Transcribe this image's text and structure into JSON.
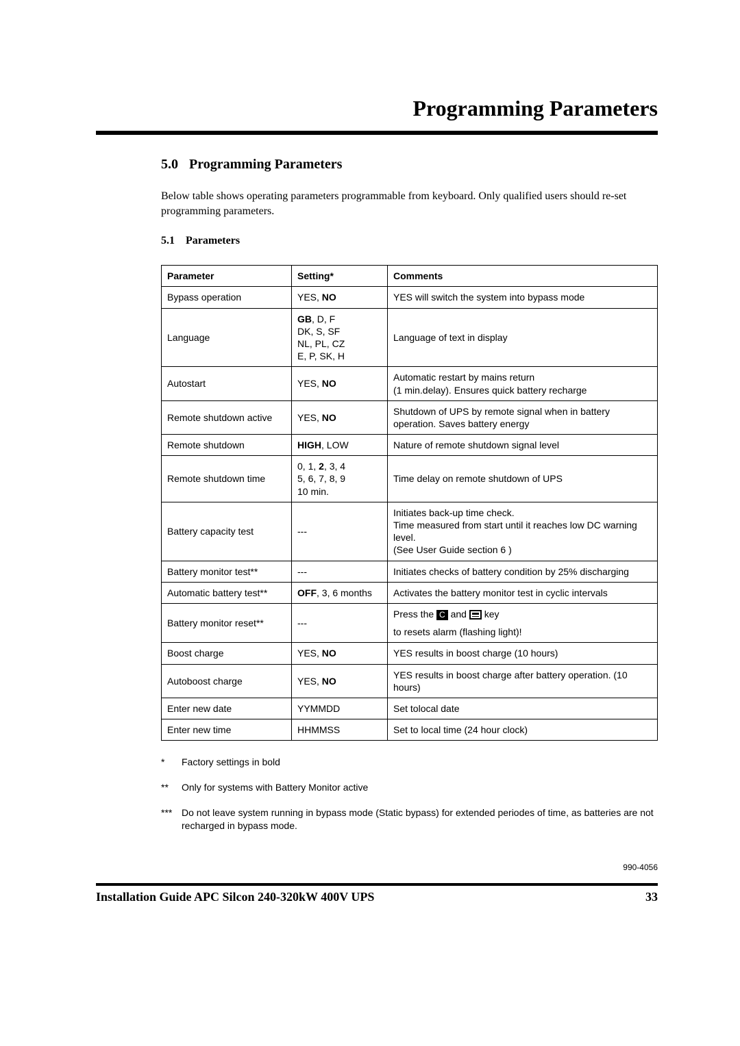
{
  "header": {
    "title": "Programming Parameters"
  },
  "section": {
    "number": "5.0",
    "title": "Programming Parameters"
  },
  "intro": "Below table shows operating parameters programmable from keyboard. Only qualified users should re-set programming parameters.",
  "subsection": {
    "number": "5.1",
    "title": "Parameters"
  },
  "table": {
    "columns": [
      "Parameter",
      "Setting*",
      "Comments"
    ],
    "rows": [
      {
        "param": "Bypass operation",
        "setting_pre": "YES, ",
        "setting_bold": "NO",
        "setting_post": "",
        "comments": "YES will switch the system into bypass mode"
      },
      {
        "param": "Language",
        "setting_lines": [
          {
            "bold": "GB",
            "rest": ", D, F"
          },
          {
            "rest": "DK, S, SF"
          },
          {
            "rest": "NL, PL, CZ"
          },
          {
            "rest": "E, P, SK, H"
          }
        ],
        "comments": "Language of text in display"
      },
      {
        "param": "Autostart",
        "setting_pre": "YES, ",
        "setting_bold": "NO",
        "setting_post": "",
        "comments": "Automatic restart by mains return\n(1 min.delay). Ensures quick battery recharge"
      },
      {
        "param": "Remote shutdown active",
        "setting_pre": "YES, ",
        "setting_bold": "NO",
        "setting_post": "",
        "comments": "Shutdown of UPS by remote signal when in battery operation. Saves battery energy"
      },
      {
        "param": "Remote shutdown",
        "setting_bold": "HIGH",
        "setting_post": ", LOW",
        "setting_pre": "",
        "comments": "Nature of remote shutdown signal level"
      },
      {
        "param": "Remote  shutdown time",
        "setting_lines": [
          {
            "rest_pre": "0, 1, ",
            "bold": "2",
            "rest": ", 3, 4"
          },
          {
            "rest": "5, 6, 7, 8, 9"
          },
          {
            "rest": "10 min."
          }
        ],
        "comments": "Time delay on remote shutdown of UPS"
      },
      {
        "param": "Battery capacity test",
        "setting_plain": "---",
        "comments": "Initiates back-up time check.\nTime measured from start until it reaches low DC warning level.\n(See User Guide section 6 )"
      },
      {
        "param": "Battery monitor test**",
        "setting_plain": "---",
        "comments": "Initiates checks of battery condition by 25% discharging"
      },
      {
        "param": "Automatic battery test**",
        "setting_bold": "OFF",
        "setting_post": ", 3, 6 months",
        "setting_pre": "",
        "comments": "Activates the battery monitor test in cyclic intervals"
      },
      {
        "param": "Battery monitor reset**",
        "setting_plain": "---",
        "comments_special": true,
        "comments_parts": {
          "pre": "Press the ",
          "key1": "C",
          "mid": " and ",
          "key2": "grid",
          "post": " key",
          "line2": "to resets alarm (flashing light)!"
        }
      },
      {
        "param": "Boost charge",
        "setting_pre": "YES, ",
        "setting_bold": "NO",
        "setting_post": "",
        "comments": "YES results in boost charge (10 hours)"
      },
      {
        "param": "Autoboost charge",
        "setting_pre": "YES, ",
        "setting_bold": "NO",
        "setting_post": "",
        "comments": "YES results in boost charge after battery operation. (10 hours)"
      },
      {
        "param": "Enter new date",
        "setting_plain": "YYMMDD",
        "comments": "Set tolocal date"
      },
      {
        "param": "Enter new time",
        "setting_plain": "HHMMSS",
        "comments": "Set to local time (24 hour clock)"
      }
    ]
  },
  "footnotes": [
    {
      "mark": "*",
      "text": "Factory settings in bold"
    },
    {
      "mark": "**",
      "text": "Only for systems with Battery Monitor active"
    },
    {
      "mark": "***",
      "text": "Do not leave system running in bypass mode (Static bypass) for extended periodes of time, as batteries are not recharged in bypass mode."
    }
  ],
  "doc_code": "990-4056",
  "footer": {
    "title": "Installation Guide APC Silcon 240-320kW 400V UPS",
    "page": "33"
  }
}
